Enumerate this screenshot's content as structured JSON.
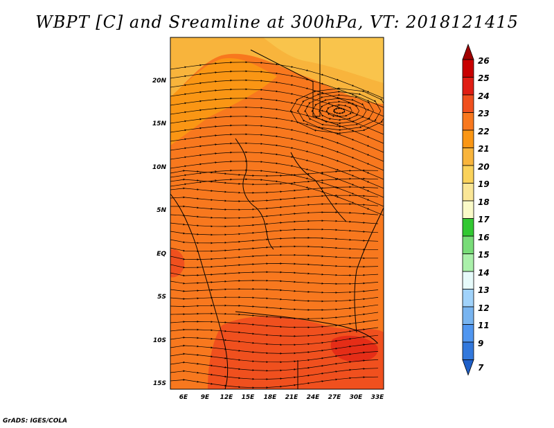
{
  "title": "WBPT [C] and Sreamline at 300hPa, VT: 2018121415",
  "credit": "GrADS: IGES/COLA",
  "map": {
    "lat_ticks": [
      "20N",
      "15N",
      "10N",
      "5N",
      "EQ",
      "5S",
      "10S",
      "15S"
    ],
    "lon_ticks": [
      "6E",
      "9E",
      "12E",
      "15E",
      "18E",
      "21E",
      "24E",
      "27E",
      "30E",
      "33E"
    ]
  },
  "colorbar": {
    "labels": [
      "26",
      "25",
      "24",
      "23",
      "22",
      "21",
      "20",
      "19",
      "18",
      "17",
      "16",
      "15",
      "14",
      "13",
      "12",
      "11",
      "9",
      "7"
    ],
    "colors": [
      "#a00000",
      "#c80000",
      "#e01e14",
      "#f0501e",
      "#f8781e",
      "#fa9614",
      "#f8b43c",
      "#fad25a",
      "#fae696",
      "#fafac8",
      "#32c832",
      "#78dc78",
      "#aaf0aa",
      "#e6fafa",
      "#a0d2fa",
      "#78b4f0",
      "#5096f0",
      "#3278dc",
      "#1e5fc8"
    ]
  }
}
